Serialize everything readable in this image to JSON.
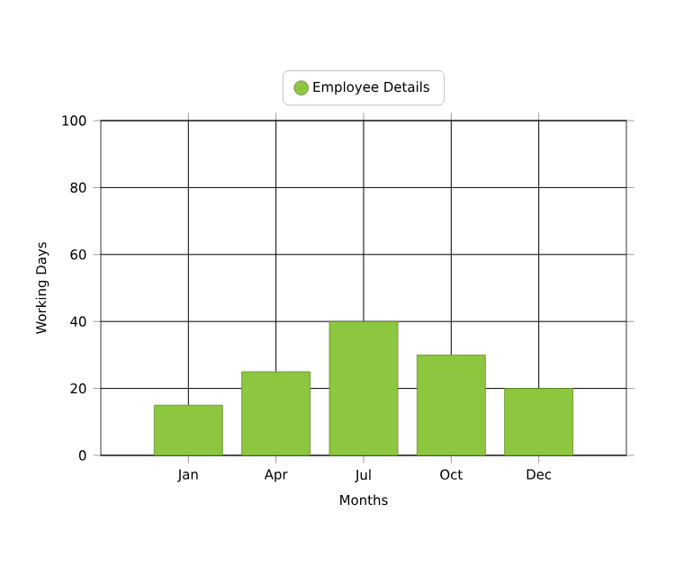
{
  "chart_data": {
    "type": "bar",
    "xlabel": "Months",
    "ylabel": "Working Days",
    "categories": [
      "Jan",
      "Apr",
      "Jul",
      "Oct",
      "Dec"
    ],
    "series": [
      {
        "name": "Employee Details",
        "color": "#8dc63f",
        "values": [
          15,
          25,
          40,
          30,
          20
        ]
      }
    ],
    "ylim": [
      0,
      100
    ],
    "yticks": [
      0,
      20,
      40,
      60,
      80,
      100
    ],
    "grid": true,
    "legend": "top"
  }
}
